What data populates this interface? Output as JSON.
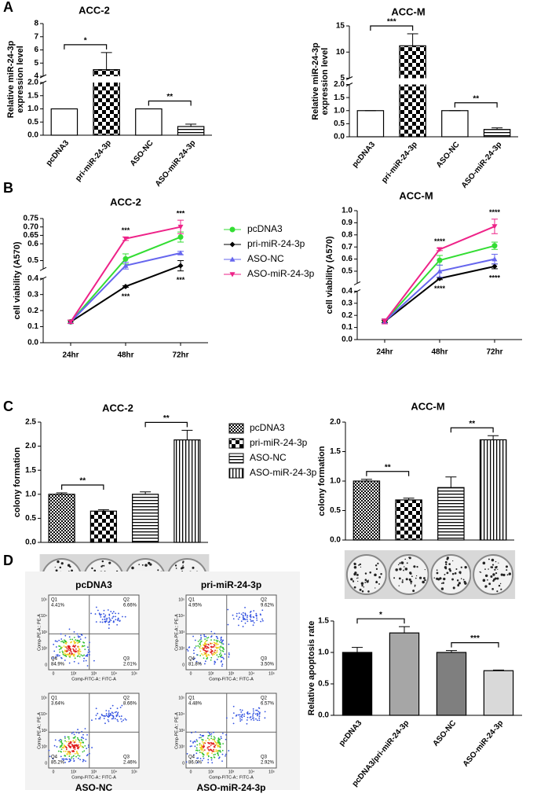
{
  "panels": [
    "A",
    "B",
    "C",
    "D"
  ],
  "chart_data": [
    {
      "type": "bar",
      "title": "ACC-2",
      "ylabel": [
        "Relative miR-24-3p",
        "expression level"
      ],
      "categories": [
        "pcDNA3",
        "pri-miR-24-3p",
        "ASO-NC",
        "ASO-miR-24-3p"
      ],
      "values": [
        1.0,
        4.5,
        1.0,
        0.33
      ],
      "errors": [
        0,
        1.3,
        0,
        0.09
      ],
      "fills": [
        "#ffffff",
        "checker",
        "#ffffff",
        "hlines"
      ],
      "ylim": [
        0,
        8
      ],
      "ybreak": [
        2,
        4
      ],
      "yticks": [
        {
          "value": 0,
          "label": "0.0"
        },
        0.5,
        {
          "value": 1,
          "label": "1.0"
        },
        1.5,
        {
          "value": 2,
          "label": "2.0"
        },
        4,
        5,
        6,
        7,
        8
      ],
      "significance": [
        {
          "text": "*",
          "pair": [
            0,
            1
          ]
        },
        {
          "text": "**",
          "pair": [
            2,
            3
          ]
        }
      ]
    },
    {
      "type": "bar",
      "title": "ACC-M",
      "ylabel": [
        "Relative miR-24-3p",
        "expression level"
      ],
      "categories": [
        "pcDNA3",
        "pri-miR-24-3p",
        "ASO-NC",
        "ASO-miR-24-3p"
      ],
      "values": [
        1.0,
        11.2,
        1.0,
        0.28
      ],
      "errors": [
        0,
        2.3,
        0,
        0.06
      ],
      "fills": [
        "#ffffff",
        "checker",
        "#ffffff",
        "hlines"
      ],
      "ylim": [
        0,
        15
      ],
      "ybreak": [
        2,
        5
      ],
      "yticks": [
        {
          "value": 0,
          "label": "0.0"
        },
        0.5,
        {
          "value": 1,
          "label": "1.0"
        },
        1.5,
        {
          "value": 2,
          "label": "2.0"
        },
        5,
        10,
        15
      ],
      "significance": [
        {
          "text": "***",
          "pair": [
            0,
            1
          ]
        },
        {
          "text": "**",
          "pair": [
            2,
            3
          ]
        }
      ]
    },
    {
      "type": "line",
      "title": "ACC-2",
      "ylabel": [
        "cell viability (A570)"
      ],
      "categories": [
        "24hr",
        "48hr",
        "72hr"
      ],
      "series": [
        {
          "name": "pcDNA3",
          "color": "#33dd33",
          "marker": "circle",
          "values": [
            0.13,
            0.51,
            0.64
          ],
          "errors": [
            0.01,
            0.03,
            0.03
          ]
        },
        {
          "name": "pri-miR-24-3p",
          "color": "#000000",
          "marker": "diamond",
          "values": [
            0.13,
            0.35,
            0.47
          ],
          "errors": [
            0.01,
            0.005,
            0.03
          ]
        },
        {
          "name": "ASO-NC",
          "color": "#6666ee",
          "marker": "triangle-up",
          "values": [
            0.13,
            0.47,
            0.545
          ],
          "errors": [
            0.01,
            0.02,
            0.01
          ]
        },
        {
          "name": "ASO-miR-24-3p",
          "color": "#ee2288",
          "marker": "triangle-down",
          "values": [
            0.13,
            0.63,
            0.7
          ],
          "errors": [
            0.01,
            0.01,
            0.04
          ]
        }
      ],
      "ylim": [
        0,
        0.75
      ],
      "ybreak": [
        0.4,
        0.45
      ],
      "yticks": [
        {
          "value": 0,
          "label": "0.0"
        },
        0.1,
        0.2,
        0.3,
        0.4,
        0.5,
        0.6,
        0.65,
        {
          "value": 0.7,
          "label": "0.70"
        },
        0.75
      ],
      "legend": "right",
      "annotations": [
        {
          "text": "***",
          "category": "48hr",
          "series": "ASO-miR-24-3p",
          "position": "above"
        },
        {
          "text": "***",
          "category": "48hr",
          "series": "pri-miR-24-3p",
          "position": "below"
        },
        {
          "text": "***",
          "category": "72hr",
          "series": "ASO-miR-24-3p",
          "position": "above"
        },
        {
          "text": "***",
          "category": "72hr",
          "series": "pri-miR-24-3p",
          "position": "below"
        }
      ]
    },
    {
      "type": "line",
      "title": "ACC-M",
      "ylabel": [
        "cell viability (A570)"
      ],
      "categories": [
        "24hr",
        "48hr",
        "72hr"
      ],
      "series": [
        {
          "name": "pcDNA3",
          "color": "#33dd33",
          "marker": "circle",
          "values": [
            0.15,
            0.59,
            0.71
          ],
          "errors": [
            0.02,
            0.04,
            0.03
          ]
        },
        {
          "name": "pri-miR-24-3p",
          "color": "#000000",
          "marker": "diamond",
          "values": [
            0.15,
            0.44,
            0.54
          ],
          "errors": [
            0.01,
            0.01,
            0.02
          ]
        },
        {
          "name": "ASO-NC",
          "color": "#6666ee",
          "marker": "triangle-up",
          "values": [
            0.15,
            0.5,
            0.6
          ],
          "errors": [
            0.02,
            0.05,
            0.04
          ]
        },
        {
          "name": "ASO-miR-24-3p",
          "color": "#ee2288",
          "marker": "triangle-down",
          "values": [
            0.15,
            0.68,
            0.87
          ],
          "errors": [
            0.02,
            0.01,
            0.06
          ]
        }
      ],
      "ylim": [
        0,
        1.0
      ],
      "ybreak": [
        0.4,
        0.4
      ],
      "yticks": [
        {
          "value": 0,
          "label": "0.0"
        },
        0.1,
        0.2,
        0.3,
        0.4,
        0.5,
        0.6,
        0.7,
        0.8,
        0.9,
        {
          "value": 1,
          "label": "1.0"
        }
      ],
      "annotations": [
        {
          "text": "****",
          "category": "48hr",
          "series": "ASO-miR-24-3p",
          "position": "above"
        },
        {
          "text": "****",
          "category": "48hr",
          "series": "pri-miR-24-3p",
          "position": "below"
        },
        {
          "text": "****",
          "category": "72hr",
          "series": "ASO-miR-24-3p",
          "position": "above"
        },
        {
          "text": "****",
          "category": "72hr",
          "series": "pri-miR-24-3p",
          "position": "below"
        }
      ]
    },
    {
      "type": "bar",
      "title": "ACC-2",
      "ylabel": [
        "colony formation"
      ],
      "categories": [
        "pcDNA3",
        "pri-miR-24-3p",
        "ASO-NC",
        "ASO-miR-24-3p"
      ],
      "values": [
        1.0,
        0.65,
        1.0,
        2.13
      ],
      "errors": [
        0.03,
        0.03,
        0.05,
        0.2
      ],
      "fills": [
        "fine-checker",
        "checker",
        "hlines",
        "vlines"
      ],
      "ylim": [
        0,
        2.5
      ],
      "yticks": [
        {
          "value": 0,
          "label": "0.0"
        },
        0.5,
        {
          "value": 1,
          "label": "1.0"
        },
        1.5,
        {
          "value": 2,
          "label": "2.0"
        },
        2.5
      ],
      "legend": "right",
      "significance": [
        {
          "text": "**",
          "pair": [
            0,
            1
          ]
        },
        {
          "text": "**",
          "pair": [
            2,
            3
          ]
        }
      ]
    },
    {
      "type": "bar",
      "title": "ACC-M",
      "ylabel": [
        "colony formation"
      ],
      "categories": [
        null,
        null,
        null,
        null
      ],
      "values": [
        1.0,
        0.68,
        0.89,
        1.7
      ],
      "errors": [
        0.03,
        0.03,
        0.18,
        0.07
      ],
      "fills": [
        "fine-checker",
        "checker",
        "hlines",
        "vlines"
      ],
      "ylim": [
        0,
        2.0
      ],
      "yticks": [
        {
          "value": 0,
          "label": "0.0"
        },
        0.5,
        {
          "value": 1,
          "label": "1.0"
        },
        1.5,
        {
          "value": 2,
          "label": "2.0"
        }
      ],
      "significance": [
        {
          "text": "**",
          "pair": [
            0,
            1
          ]
        },
        {
          "text": "**",
          "pair": [
            2,
            3
          ]
        }
      ]
    },
    {
      "type": "bar",
      "ylabel": [
        "Relative apoptosis rate"
      ],
      "categories": [
        "pcDNA3",
        "pcDNA3/pri-miR-24-3p",
        "ASO-NC",
        "ASO-miR-24-3p"
      ],
      "values": [
        1.0,
        1.31,
        1.0,
        0.71
      ],
      "errors": [
        0.08,
        0.1,
        0.03,
        0.01
      ],
      "fills": [
        "#000000",
        "#a6a6a6",
        "#7f7f7f",
        "#d9d9d9"
      ],
      "ylim": [
        0,
        1.5
      ],
      "yticks": [
        {
          "value": 0,
          "label": "0.0"
        },
        0.5,
        {
          "value": 1,
          "label": "1.0"
        },
        1.5
      ],
      "significance": [
        {
          "text": "*",
          "pair": [
            0,
            1
          ]
        },
        {
          "text": "***",
          "pair": [
            2,
            3
          ]
        }
      ]
    }
  ],
  "flow": {
    "x_label": "Comp-FITC-A:: FITC-A",
    "y_label": "Comp-PE-A:: PE-A",
    "ticks": [
      "0",
      "10²",
      "10³",
      "10⁴",
      "10⁵"
    ],
    "plots": [
      {
        "title": "pcDNA3",
        "quadrants": [
          {
            "name": "Q1",
            "value": "4.41%"
          },
          {
            "name": "Q2",
            "value": "6.66%"
          },
          {
            "name": "Q4",
            "value": "84.9%"
          },
          {
            "name": "Q3",
            "value": "2.01%"
          }
        ]
      },
      {
        "title": "pri-miR-24-3p",
        "quadrants": [
          {
            "name": "Q1",
            "value": "4.95%"
          },
          {
            "name": "Q2",
            "value": "9.62%"
          },
          {
            "name": "Q4",
            "value": "81.8%"
          },
          {
            "name": "Q3",
            "value": "3.50%"
          }
        ]
      },
      {
        "title": "ASO-NC",
        "quadrants": [
          {
            "name": "Q1",
            "value": "3.64%"
          },
          {
            "name": "Q2",
            "value": "8.66%"
          },
          {
            "name": "Q4",
            "value": "85.2%"
          },
          {
            "name": "Q3",
            "value": "2.46%"
          }
        ]
      },
      {
        "title": "ASO-miR-24-3p",
        "quadrants": [
          {
            "name": "Q1",
            "value": "4.48%"
          },
          {
            "name": "Q2",
            "value": "6.57%"
          },
          {
            "name": "Q4",
            "value": "86.0%"
          },
          {
            "name": "Q3",
            "value": "2.92%"
          }
        ]
      }
    ]
  }
}
